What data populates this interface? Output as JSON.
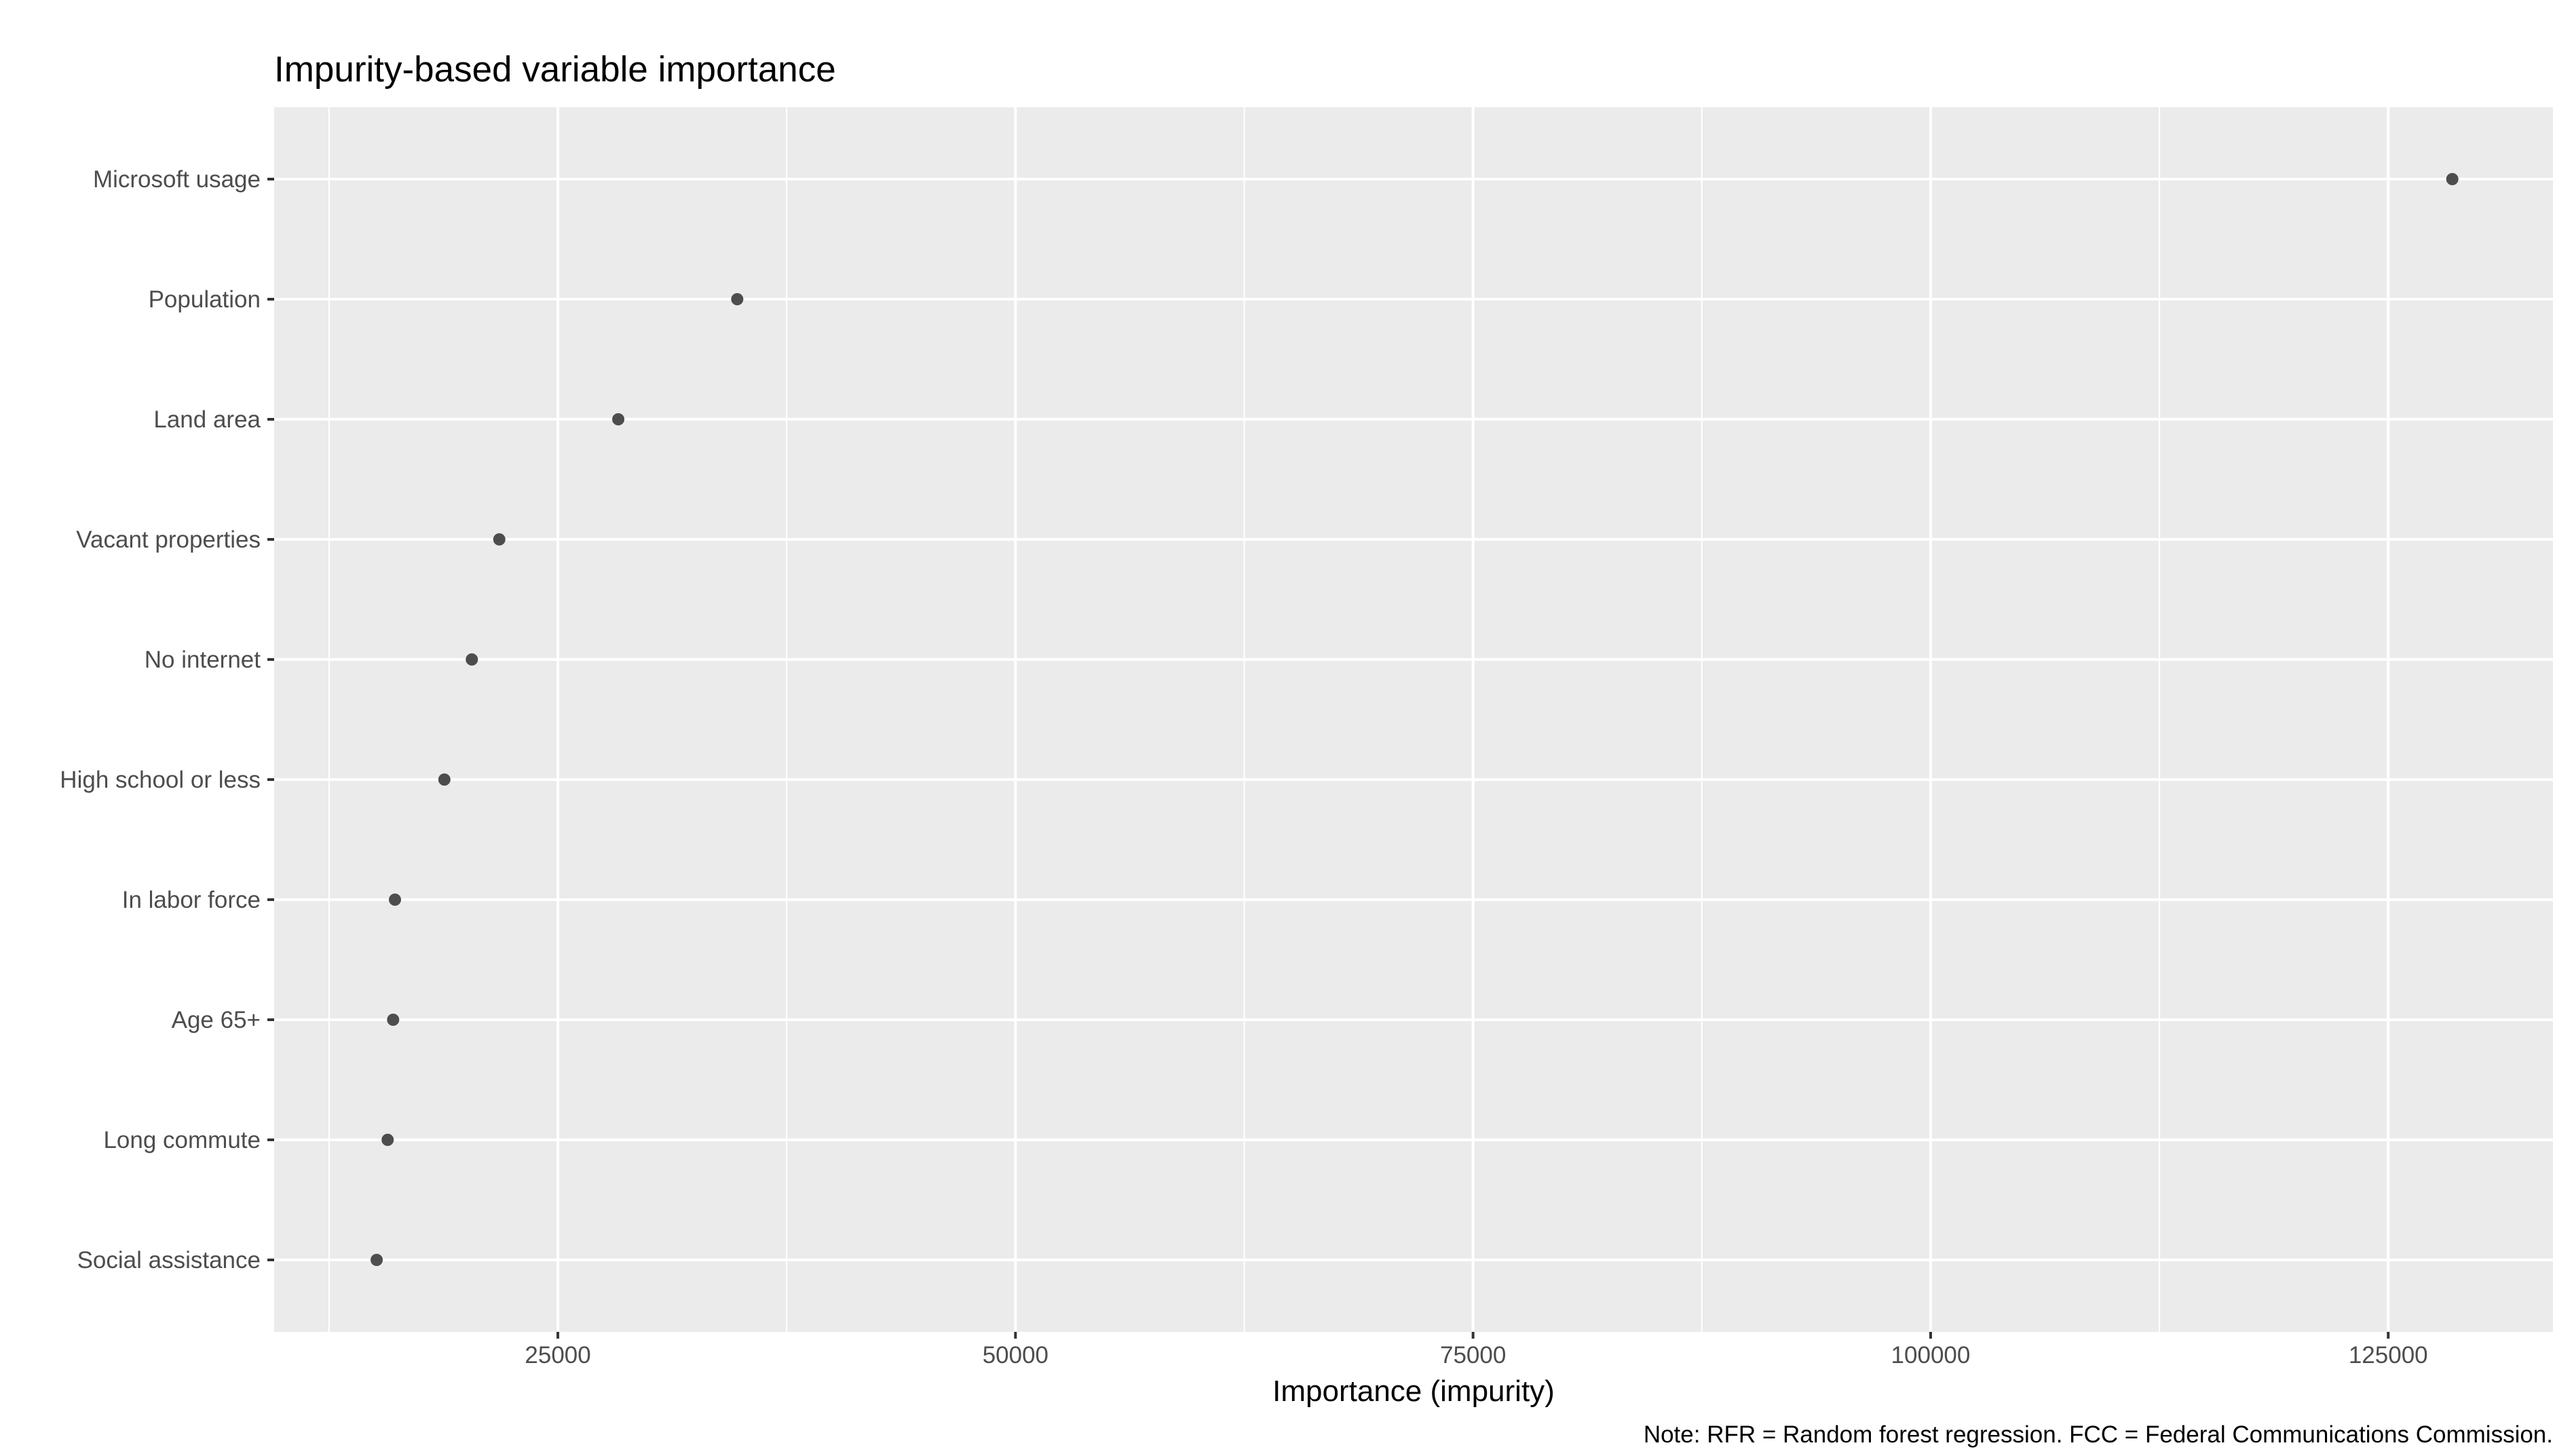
{
  "chart_data": {
    "type": "scatter",
    "title": "Impurity-based variable importance",
    "xlabel": "Importance (impurity)",
    "ylabel": "",
    "caption": "Note: RFR = Random forest regression. FCC = Federal Communications Commission.",
    "xlim": [
      9500,
      134000
    ],
    "x_ticks": [
      25000,
      50000,
      75000,
      100000,
      125000
    ],
    "x_tick_labels": [
      "25000",
      "50000",
      "75000",
      "100000",
      "125000"
    ],
    "x_minor_ticks": [
      12500,
      37500,
      62500,
      87500,
      112500
    ],
    "grid": true,
    "background": "#ebebeb",
    "grid_color": "#ffffff",
    "point_color": "#4d4d4d",
    "categories": [
      "Microsoft usage",
      "Population",
      "Land area",
      "Vacant properties",
      "No internet",
      "High school or less",
      "In labor force",
      "Age 65+",
      "Long commute",
      "Social assistance"
    ],
    "values": [
      128500,
      34800,
      28300,
      21800,
      20300,
      18800,
      16100,
      16000,
      15700,
      15100
    ]
  }
}
